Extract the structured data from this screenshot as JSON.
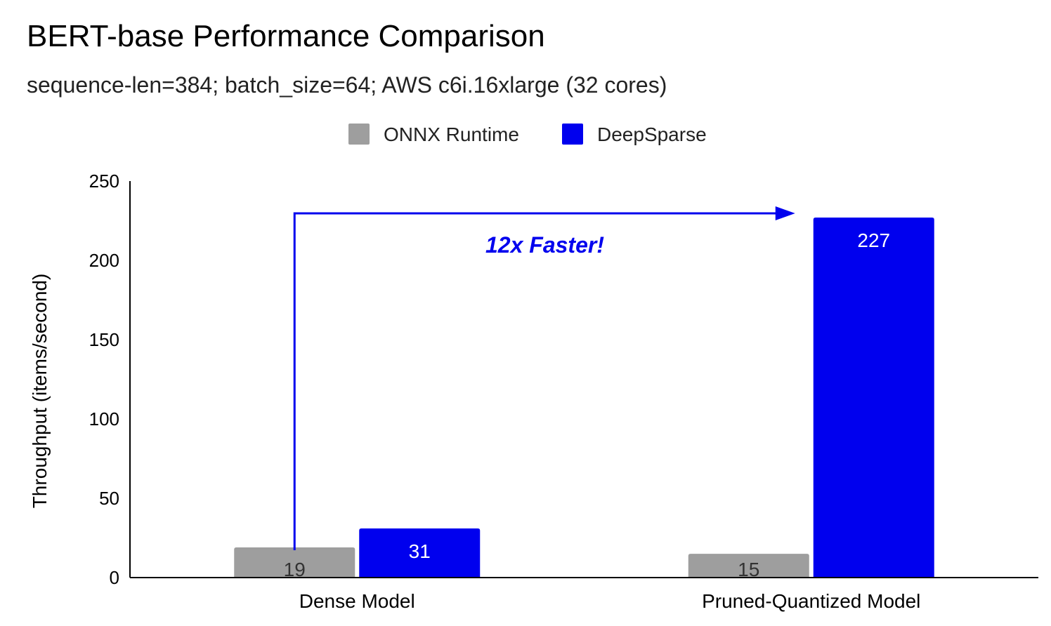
{
  "chart_data": {
    "type": "bar",
    "title": "BERT-base Performance Comparison",
    "subtitle": "sequence-len=384; batch_size=64; AWS c6i.16xlarge (32 cores)",
    "xlabel": "",
    "ylabel": "Throughput (items/second)",
    "categories": [
      "Dense Model",
      "Pruned-Quantized Model"
    ],
    "series": [
      {
        "name": "ONNX Runtime",
        "color": "#9e9e9e",
        "label_color": "#333333",
        "values": [
          19,
          15
        ]
      },
      {
        "name": "DeepSparse",
        "color": "#0000ee",
        "label_color": "#ffffff",
        "values": [
          31,
          227
        ]
      }
    ],
    "ylim": [
      0,
      250
    ],
    "yticks": [
      0,
      50,
      100,
      150,
      200,
      250
    ],
    "grid": false,
    "legend_position": "top-center",
    "annotation": {
      "text": "12x Faster!",
      "color": "#0000ee",
      "from": {
        "category": "Dense Model",
        "series": "ONNX Runtime"
      },
      "to": {
        "category": "Pruned-Quantized Model",
        "series": "DeepSparse"
      }
    }
  }
}
